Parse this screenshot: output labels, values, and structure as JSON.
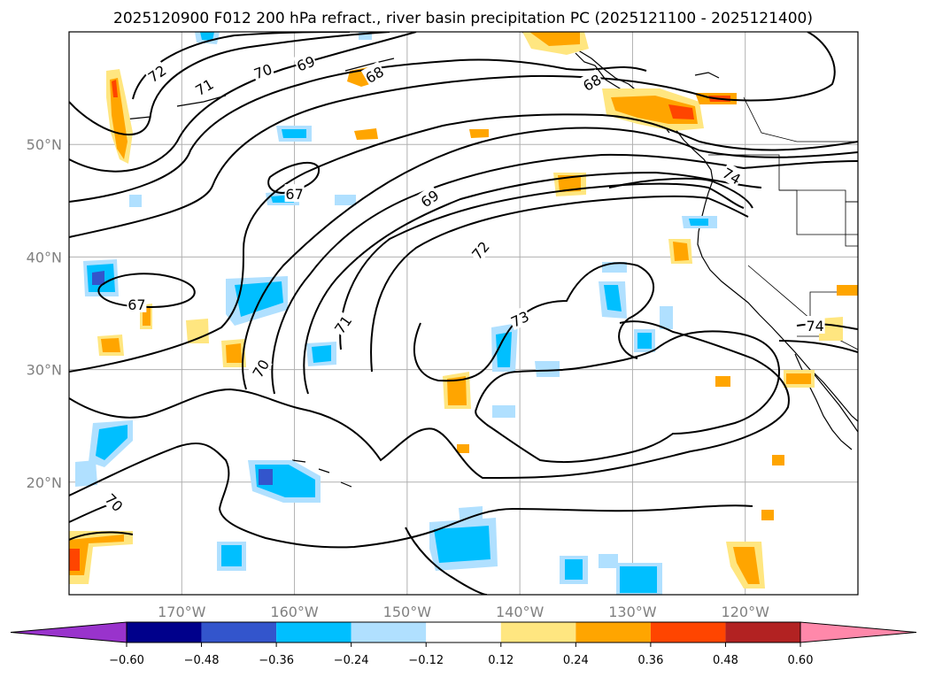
{
  "chart_data": {
    "type": "map",
    "title": "2025120900 F012 200 hPa refract., river basin precipitation PC (2025121100 - 2025121400)",
    "projection": "plate carree",
    "lon_range": [
      -180,
      -110
    ],
    "lat_range": [
      10,
      60
    ],
    "lat_ticks": [
      {
        "value": 50,
        "label": "50°N"
      },
      {
        "value": 40,
        "label": "40°N"
      },
      {
        "value": 30,
        "label": "30°N"
      },
      {
        "value": 20,
        "label": "20°N"
      }
    ],
    "lon_ticks": [
      {
        "value": -170,
        "label": "170°W"
      },
      {
        "value": -160,
        "label": "160°W"
      },
      {
        "value": -150,
        "label": "150°W"
      },
      {
        "value": -140,
        "label": "140°W"
      },
      {
        "value": -130,
        "label": "130°W"
      },
      {
        "value": -120,
        "label": "120°W"
      }
    ],
    "grid": true,
    "colorbar": {
      "orientation": "horizontal",
      "extend": "both",
      "levels": [
        -0.6,
        -0.48,
        -0.36,
        -0.24,
        -0.12,
        0.12,
        0.24,
        0.36,
        0.48,
        0.6
      ],
      "tick_labels": [
        "−0.60",
        "−0.48",
        "−0.36",
        "−0.24",
        "−0.12",
        "0.12",
        "0.24",
        "0.36",
        "0.48",
        "0.60"
      ],
      "colors": [
        "#9933cc",
        "#00008b",
        "#3355cc",
        "#00bfff",
        "#b0e0ff",
        "#ffffff",
        "#ffe680",
        "#ffa500",
        "#ff4500",
        "#b22222",
        "#ff88aa"
      ]
    },
    "contour_labels": [
      {
        "text": "72",
        "lon": -172.2,
        "lat": 56.3,
        "angle": -35
      },
      {
        "text": "71",
        "lon": -168.0,
        "lat": 55.1,
        "angle": -30
      },
      {
        "text": "70",
        "lon": -162.8,
        "lat": 56.5,
        "angle": -20
      },
      {
        "text": "69",
        "lon": -159.0,
        "lat": 57.2,
        "angle": -20
      },
      {
        "text": "68",
        "lon": -152.9,
        "lat": 56.2,
        "angle": -30
      },
      {
        "text": "68",
        "lon": -133.6,
        "lat": 55.5,
        "angle": -30
      },
      {
        "text": "74",
        "lon": -121.2,
        "lat": 47.2,
        "angle": 30
      },
      {
        "text": "67",
        "lon": -160.0,
        "lat": 45.6,
        "angle": 0
      },
      {
        "text": "69",
        "lon": -148.0,
        "lat": 45.2,
        "angle": -35
      },
      {
        "text": "72",
        "lon": -143.5,
        "lat": 40.6,
        "angle": -50
      },
      {
        "text": "73",
        "lon": -140.0,
        "lat": 34.5,
        "angle": -25
      },
      {
        "text": "67",
        "lon": -174.0,
        "lat": 35.8,
        "angle": 0
      },
      {
        "text": "71",
        "lon": -155.7,
        "lat": 34.0,
        "angle": -55
      },
      {
        "text": "70",
        "lon": -163.0,
        "lat": 30.1,
        "angle": -60
      },
      {
        "text": "74",
        "lon": -113.8,
        "lat": 33.9,
        "angle": 0
      },
      {
        "text": "70",
        "lon": -176.0,
        "lat": 18.2,
        "angle": 45
      }
    ]
  }
}
